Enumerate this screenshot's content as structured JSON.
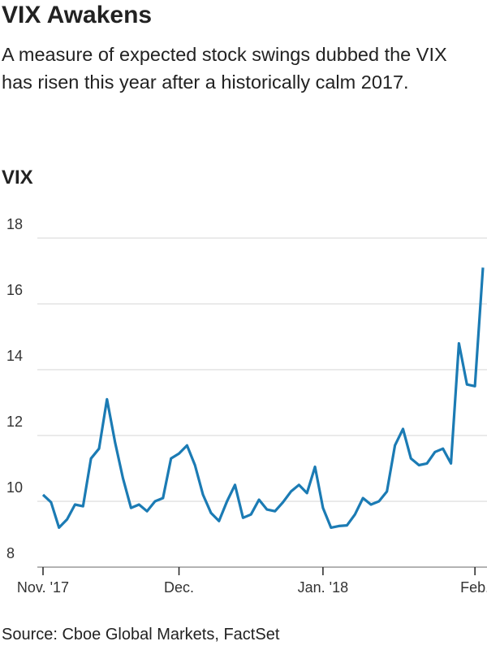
{
  "chart_data": {
    "type": "line",
    "title": "VIX Awakens",
    "subtitle": "A measure of expected stock swings dubbed the VIX has risen this year after a historically calm 2017.",
    "y_label": "VIX",
    "source": "Source: Cboe Global Markets, FactSet",
    "categories": [
      "Nov. '17",
      null,
      null,
      null,
      null,
      null,
      null,
      null,
      null,
      null,
      null,
      null,
      null,
      null,
      null,
      null,
      null,
      "Dec.",
      null,
      null,
      null,
      null,
      null,
      null,
      null,
      null,
      null,
      null,
      null,
      null,
      null,
      null,
      null,
      null,
      null,
      "Jan. '18",
      null,
      null,
      null,
      null,
      null,
      null,
      null,
      null,
      null,
      null,
      null,
      null,
      null,
      null,
      null,
      null,
      null,
      null,
      "Feb.",
      null
    ],
    "series": [
      {
        "name": "VIX",
        "color": "#1b7bb4",
        "values": [
          10.2,
          9.97,
          9.2,
          9.45,
          9.9,
          9.85,
          11.3,
          11.6,
          13.1,
          11.8,
          10.7,
          9.8,
          9.9,
          9.7,
          10.0,
          10.1,
          11.3,
          11.45,
          11.7,
          11.1,
          10.2,
          9.65,
          9.4,
          10.0,
          10.5,
          9.5,
          9.6,
          10.05,
          9.75,
          9.7,
          9.97,
          10.3,
          10.5,
          10.25,
          11.05,
          9.8,
          9.2,
          9.25,
          9.27,
          9.6,
          10.1,
          9.9,
          10.0,
          10.3,
          11.7,
          12.2,
          11.3,
          11.1,
          11.15,
          11.5,
          11.6,
          11.15,
          14.8,
          13.55,
          13.5,
          17.1
        ]
      }
    ],
    "ylim": [
      8,
      18
    ],
    "yticks": [
      8,
      10,
      12,
      14,
      16,
      18
    ],
    "grid": true
  }
}
